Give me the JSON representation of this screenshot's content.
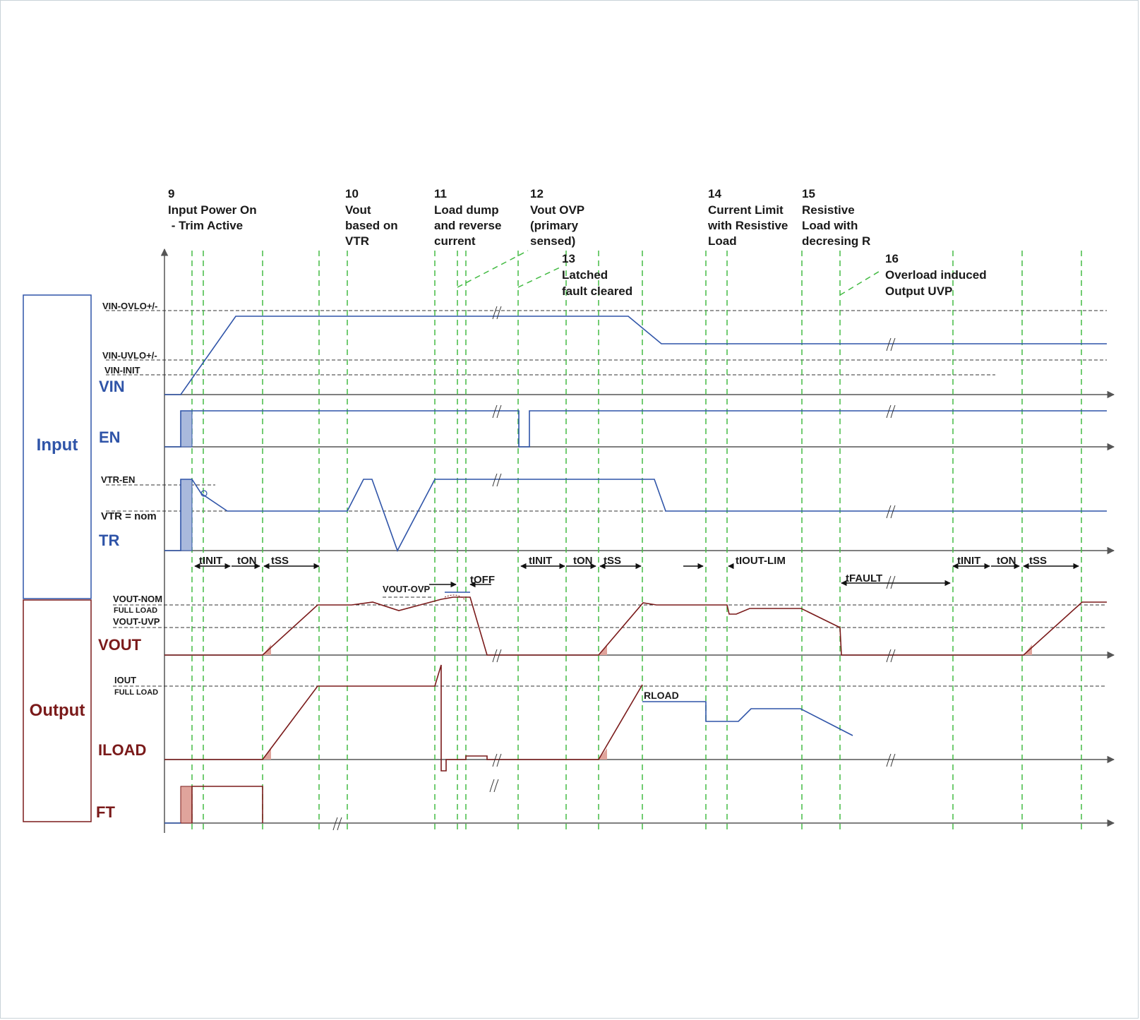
{
  "groups": {
    "input": "Input",
    "output": "Output"
  },
  "signals": {
    "vin": "VIN",
    "en": "EN",
    "tr": "TR",
    "vout": "VOUT",
    "iload": "ILOAD",
    "ft": "FT"
  },
  "thresholds": {
    "vin_ovlo": "VIN-OVLO+/-",
    "vin_uvlo": "VIN-UVLO+/-",
    "vin_init": "VIN-INIT",
    "vtr_en": "VTR-EN",
    "vtr_nom": "VTR = nom",
    "vout_nom": "VOUT-NOM",
    "vout_full": "FULL LOAD",
    "vout_uvp": "VOUT-UVP",
    "iout": "IOUT",
    "iout_full": "FULL LOAD",
    "vout_ovp": "VOUT-OVP",
    "rload": "RLOAD"
  },
  "events": [
    {
      "num": "9",
      "lines": [
        "Input Power On",
        " - Trim Active"
      ]
    },
    {
      "num": "10",
      "lines": [
        "Vout",
        "based on",
        "VTR"
      ]
    },
    {
      "num": "11",
      "lines": [
        "Load dump",
        "and reverse",
        "current"
      ]
    },
    {
      "num": "12",
      "lines": [
        "Vout OVP",
        "(primary",
        "sensed)"
      ]
    },
    {
      "num": "13",
      "lines": [
        "Latched",
        "fault cleared"
      ]
    },
    {
      "num": "14",
      "lines": [
        "Current Limit",
        "with Resistive",
        "Load"
      ]
    },
    {
      "num": "15",
      "lines": [
        "Resistive",
        "Load with",
        "decresing R"
      ]
    },
    {
      "num": "16",
      "lines": [
        "Overload induced",
        "Output UVP"
      ]
    }
  ],
  "timings": [
    "tINIT",
    "tON",
    "tSS",
    "tOFF",
    "tINIT",
    "tON",
    "tSS",
    "tIOUT-LIM",
    "tFAULT",
    "tINIT",
    "tON",
    "tSS"
  ],
  "colors": {
    "input": "#2f54a8",
    "output": "#7a1a1a",
    "marker": "#44bb44",
    "axis": "#555555",
    "fill_in": "#a9b9dc",
    "fill_out": "#e0a49c"
  }
}
